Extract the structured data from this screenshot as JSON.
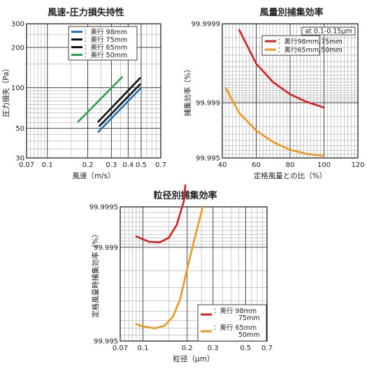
{
  "chart_data": [
    {
      "id": "pressure",
      "type": "line",
      "title": "風速-圧力損失持性",
      "xlabel": "風速（m/s）",
      "ylabel": "圧力損失（Pa）",
      "xscale": "log",
      "yscale": "log",
      "xlim": [
        0.07,
        0.7
      ],
      "ylim": [
        30,
        300
      ],
      "grid": true,
      "legend_position": "top-right",
      "x_ticks": [
        0.07,
        0.1,
        0.2,
        0.3,
        0.4,
        0.5,
        0.7
      ],
      "x_tick_labels": [
        "0.07",
        "0.1",
        "0.2",
        "0.3",
        "0.4",
        "0.5",
        "0.7"
      ],
      "y_ticks": [
        30,
        50,
        100,
        200,
        300
      ],
      "y_tick_labels": [
        "30",
        "50",
        "100",
        "200",
        "300"
      ],
      "series": [
        {
          "name": "：奥行 98mm",
          "color": "#1f6fc0",
          "x": [
            0.24,
            0.5
          ],
          "y": [
            47,
            100
          ]
        },
        {
          "name": "：奥行 75mm",
          "color": "#111111",
          "x": [
            0.245,
            0.49
          ],
          "y": [
            52,
            106
          ]
        },
        {
          "name": "：奥行 65mm",
          "color": "#111111",
          "x": [
            0.24,
            0.49
          ],
          "y": [
            56,
            118
          ]
        },
        {
          "name": "：奥行 50mm",
          "color": "#2aa14a",
          "x": [
            0.17,
            0.36
          ],
          "y": [
            56,
            120
          ]
        }
      ]
    },
    {
      "id": "airflow",
      "type": "line",
      "title": "風量別捕集効率",
      "xlabel": "定格風量との比（%）",
      "ylabel": "捕集効率（%）",
      "yscale": "penetration-log",
      "xlim": [
        40,
        120
      ],
      "ylim": [
        99.995,
        99.9999
      ],
      "grid": true,
      "legend_position": "top-right",
      "annotation": "at 0.1-0.15μm",
      "x_ticks": [
        40,
        60,
        80,
        100,
        120
      ],
      "x_tick_labels": [
        "40",
        "60",
        "80",
        "100",
        "120"
      ],
      "y_ticks": [
        99.995,
        99.999,
        99.9999
      ],
      "y_tick_labels": [
        "99.995",
        "99.999",
        "99.9999"
      ],
      "series": [
        {
          "name": "：奥行98mm,75mm",
          "color": "#d42020",
          "x": [
            50,
            60,
            70,
            80,
            90,
            100
          ],
          "y": [
            99.99988,
            99.99968,
            99.99945,
            99.99922,
            99.99902,
            99.99885
          ]
        },
        {
          "name": "：奥行65mm,50mm",
          "color": "#f0961e",
          "x": [
            42,
            50,
            60,
            70,
            80,
            90,
            100
          ],
          "y": [
            99.99935,
            99.99865,
            99.99775,
            99.99685,
            99.99605,
            99.99555,
            99.9953
          ]
        }
      ]
    },
    {
      "id": "particle",
      "type": "line",
      "title": "粒径別捕集効率",
      "xlabel": "粒径（μm）",
      "ylabel": "定格風量時捕集効率（%）",
      "xscale": "log",
      "yscale": "penetration-log",
      "xlim": [
        0.07,
        0.7
      ],
      "ylim": [
        99.995,
        99.9995
      ],
      "grid": true,
      "legend_position": "bottom-right",
      "x_ticks": [
        0.07,
        0.1,
        0.2,
        0.3,
        0.5,
        0.7
      ],
      "x_tick_labels": [
        "0.07",
        "0.1",
        "0.2",
        "0.3",
        "0.5",
        "0.7"
      ],
      "y_ticks": [
        99.995,
        99.999,
        99.9995
      ],
      "y_tick_labels": [
        "99.995",
        "99.999",
        "99.9995"
      ],
      "series": [
        {
          "name": "：奥行 98mm / 75mm",
          "color": "#d42020",
          "x": [
            0.09,
            0.11,
            0.13,
            0.15,
            0.17,
            0.19,
            0.2
          ],
          "y": [
            99.99917,
            99.99909,
            99.99908,
            99.99915,
            99.99932,
            99.99955,
            99.99975
          ]
        },
        {
          "name": "：奥行 65mm / 50mm",
          "color": "#f0961e",
          "x": [
            0.09,
            0.1,
            0.12,
            0.14,
            0.16,
            0.18,
            0.2,
            0.22,
            0.24,
            0.255
          ],
          "y": [
            99.99625,
            99.99612,
            99.99598,
            99.99615,
            99.9967,
            99.9976,
            99.99855,
            99.99905,
            99.99935,
            99.9995
          ]
        }
      ]
    }
  ]
}
